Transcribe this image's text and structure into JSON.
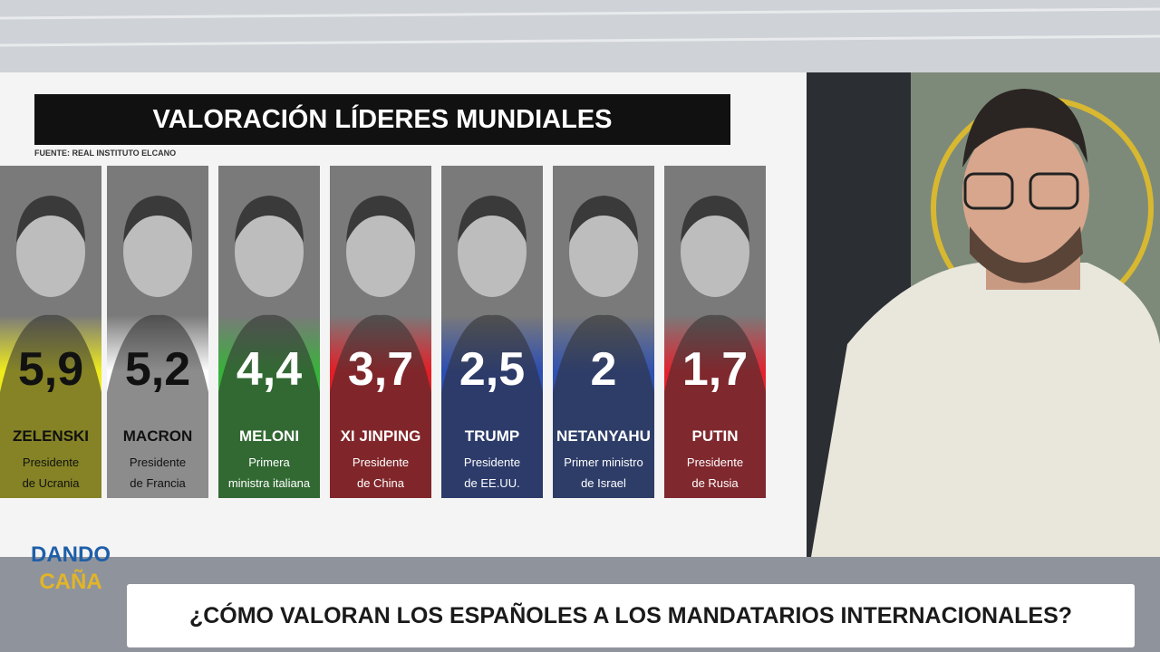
{
  "graphic": {
    "title": "VALORACIÓN LÍDERES MUNDIALES",
    "source": "FUENTE: REAL INSTITUTO ELCANO",
    "cards": [
      {
        "value": "5,9",
        "name": "ZELENSKI",
        "role": [
          "Presidente",
          "de Ucrania"
        ],
        "color": "#f0ec1c",
        "text_color": "#111111"
      },
      {
        "value": "5,2",
        "name": "MACRON",
        "role": [
          "Presidente",
          "de Francia"
        ],
        "color": "#ffffff",
        "text_color": "#111111"
      },
      {
        "value": "4,4",
        "name": "MELONI",
        "role": [
          "Primera",
          "ministra italiana"
        ],
        "color": "#38b23a",
        "text_color": "#ffffff"
      },
      {
        "value": "3,7",
        "name": "XI JINPING",
        "role": [
          "Presidente",
          "de China"
        ],
        "color": "#e41e26",
        "text_color": "#ffffff"
      },
      {
        "value": "2,5",
        "name": "TRUMP",
        "role": [
          "Presidente",
          "de EE.UU."
        ],
        "color": "#2c4db3",
        "text_color": "#ffffff"
      },
      {
        "value": "2",
        "name": "NETANYAHU",
        "role": [
          "Primer ministro",
          "de Israel"
        ],
        "color": "#2f51b0",
        "text_color": "#ffffff"
      },
      {
        "value": "1,7",
        "name": "PUTIN",
        "role": [
          "Presidente",
          "de Rusia"
        ],
        "color": "#e2232f",
        "text_color": "#ffffff"
      }
    ]
  },
  "logo": {
    "line1": "DANDO",
    "line2": "CAÑA"
  },
  "lower_third": {
    "headline": "¿CÓMO VALORAN LOS ESPAÑOLES A LOS MANDATARIOS INTERNACIONALES?"
  }
}
